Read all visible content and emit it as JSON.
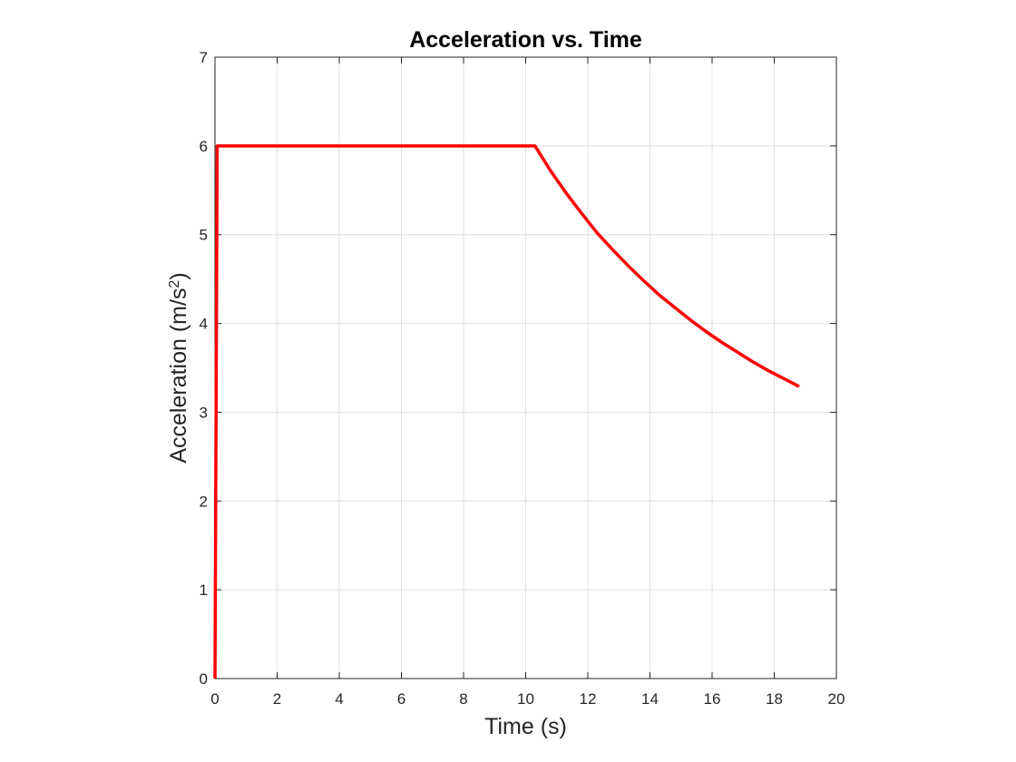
{
  "chart_data": {
    "type": "line",
    "title": "Acceleration vs. Time",
    "xlabel": "Time (s)",
    "ylabel_main": "Acceleration (m/s",
    "ylabel_sup": "2",
    "ylabel_close": ")",
    "xlim": [
      0,
      20
    ],
    "ylim": [
      0,
      7
    ],
    "xticks": [
      0,
      2,
      4,
      6,
      8,
      10,
      12,
      14,
      16,
      18,
      20
    ],
    "yticks": [
      0,
      1,
      2,
      3,
      4,
      5,
      6,
      7
    ],
    "grid": true,
    "line_color": "#ff0000",
    "series": [
      {
        "x": [
          0,
          0.07,
          0.07,
          10.3,
          10.8,
          11.3,
          11.8,
          12.3,
          12.8,
          13.3,
          13.8,
          14.3,
          14.8,
          15.3,
          15.8,
          16.3,
          16.8,
          17.3,
          17.8,
          18.3,
          18.8
        ],
        "y": [
          0,
          6.0,
          6.0,
          6.0,
          5.72,
          5.47,
          5.24,
          5.02,
          4.83,
          4.65,
          4.48,
          4.32,
          4.18,
          4.04,
          3.91,
          3.79,
          3.68,
          3.57,
          3.47,
          3.38,
          3.29
        ]
      }
    ]
  }
}
